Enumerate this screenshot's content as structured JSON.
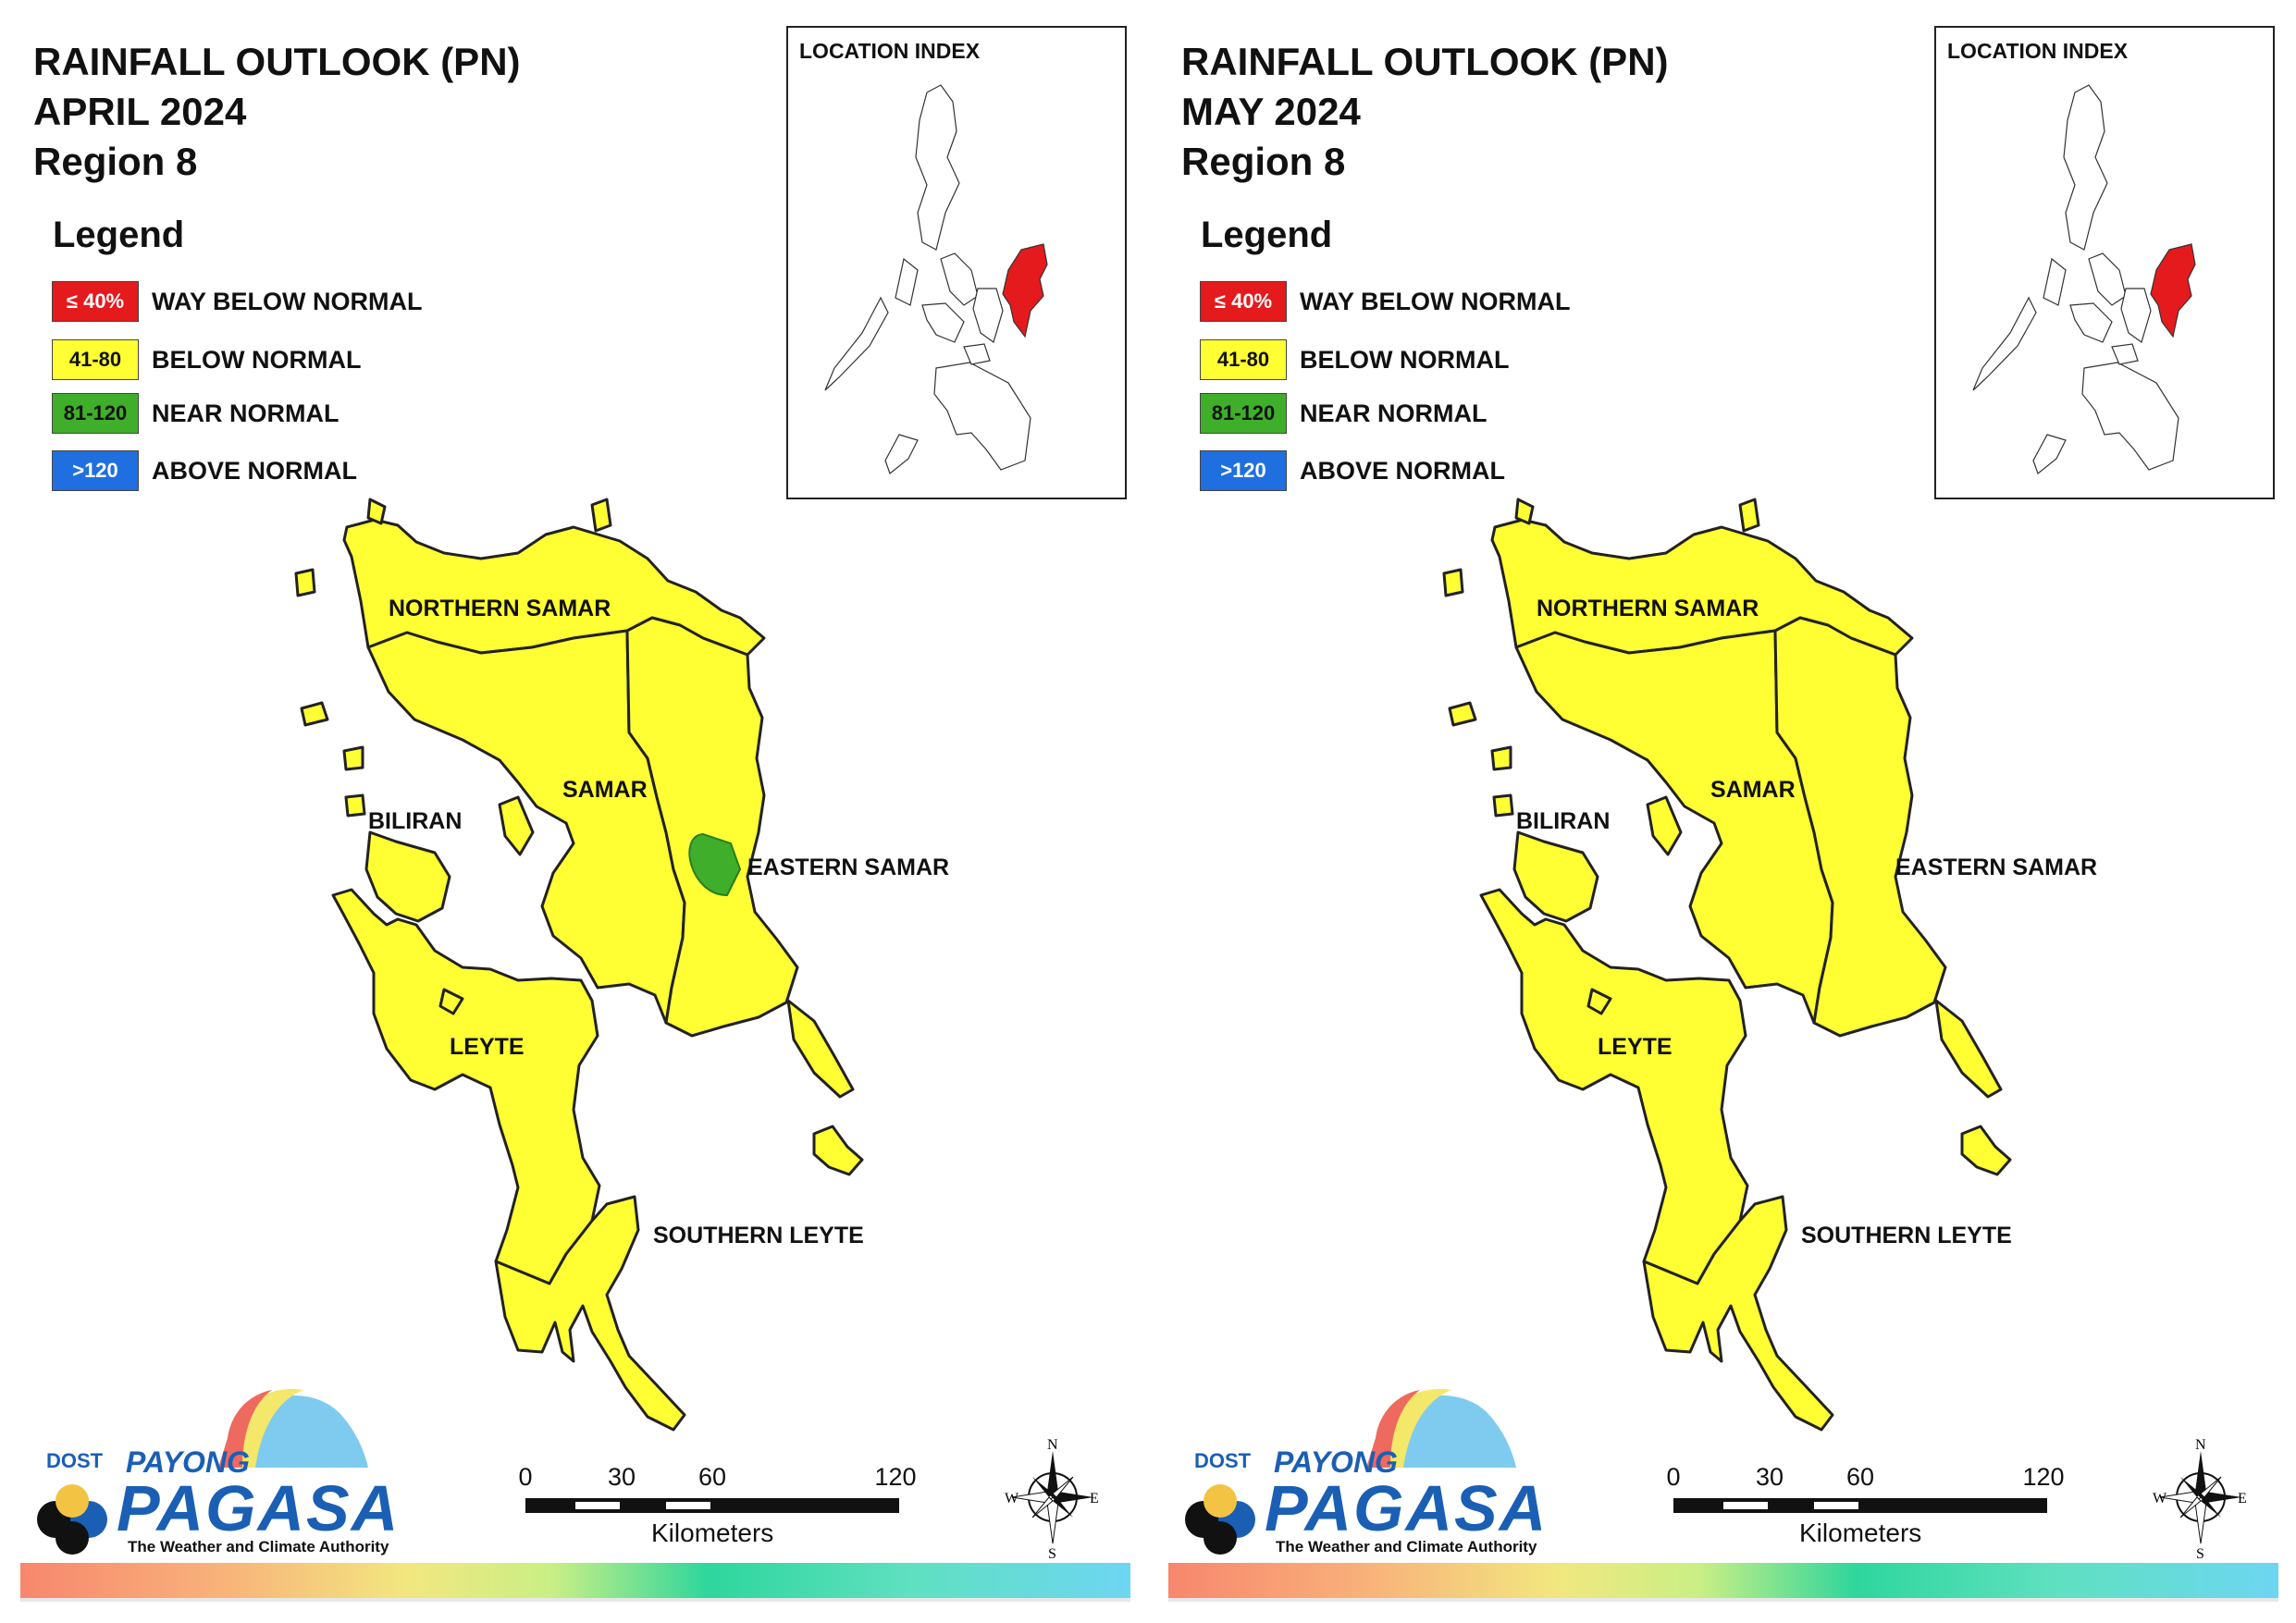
{
  "colors": {
    "way_below": "#e41a1c",
    "below": "#ffff33",
    "near": "#3fae2a",
    "above": "#1f6fe0",
    "outline": "#222222"
  },
  "legend": {
    "heading": "Legend",
    "items": [
      {
        "range": "≤ 40%",
        "label": "WAY BELOW NORMAL",
        "color": "#e41a1c"
      },
      {
        "range": "41-80",
        "label": "BELOW NORMAL",
        "color": "#ffff33"
      },
      {
        "range": "81-120",
        "label": "NEAR NORMAL",
        "color": "#3fae2a"
      },
      {
        "range": ">120",
        "label": "ABOVE NORMAL",
        "color": "#1f6fe0"
      }
    ]
  },
  "location_index": {
    "title": "LOCATION INDEX"
  },
  "provinces": {
    "northern_samar": "NORTHERN SAMAR",
    "samar": "SAMAR",
    "eastern_samar": "EASTERN SAMAR",
    "biliran": "BILIRAN",
    "leyte": "LEYTE",
    "southern_leyte": "SOUTHERN LEYTE"
  },
  "scale": {
    "ticks": [
      "0",
      "30",
      "60",
      "120"
    ],
    "unit": "Kilometers"
  },
  "compass": {
    "n": "N",
    "s": "S",
    "e": "E",
    "w": "W"
  },
  "logo": {
    "dost": "DOST",
    "payong": "PAYONG",
    "pagasa": "PAGASA",
    "tagline": "The Weather and Climate Authority"
  },
  "panels": [
    {
      "title_line1": "RAINFALL OUTLOOK (PN)",
      "title_line2": "APRIL 2024",
      "title_line3": "Region 8",
      "categories": {
        "northern_samar": "BELOW NORMAL",
        "samar": "BELOW NORMAL",
        "eastern_samar": "BELOW NORMAL",
        "biliran": "BELOW NORMAL",
        "leyte": "BELOW NORMAL",
        "southern_leyte": "BELOW NORMAL"
      },
      "near_normal_patch": "EASTERN SAMAR"
    },
    {
      "title_line1": "RAINFALL OUTLOOK (PN)",
      "title_line2": "MAY 2024",
      "title_line3": "Region 8",
      "categories": {
        "northern_samar": "BELOW NORMAL",
        "samar": "BELOW NORMAL",
        "eastern_samar": "BELOW NORMAL",
        "biliran": "BELOW NORMAL",
        "leyte": "BELOW NORMAL",
        "southern_leyte": "BELOW NORMAL"
      },
      "near_normal_patch": ""
    }
  ]
}
